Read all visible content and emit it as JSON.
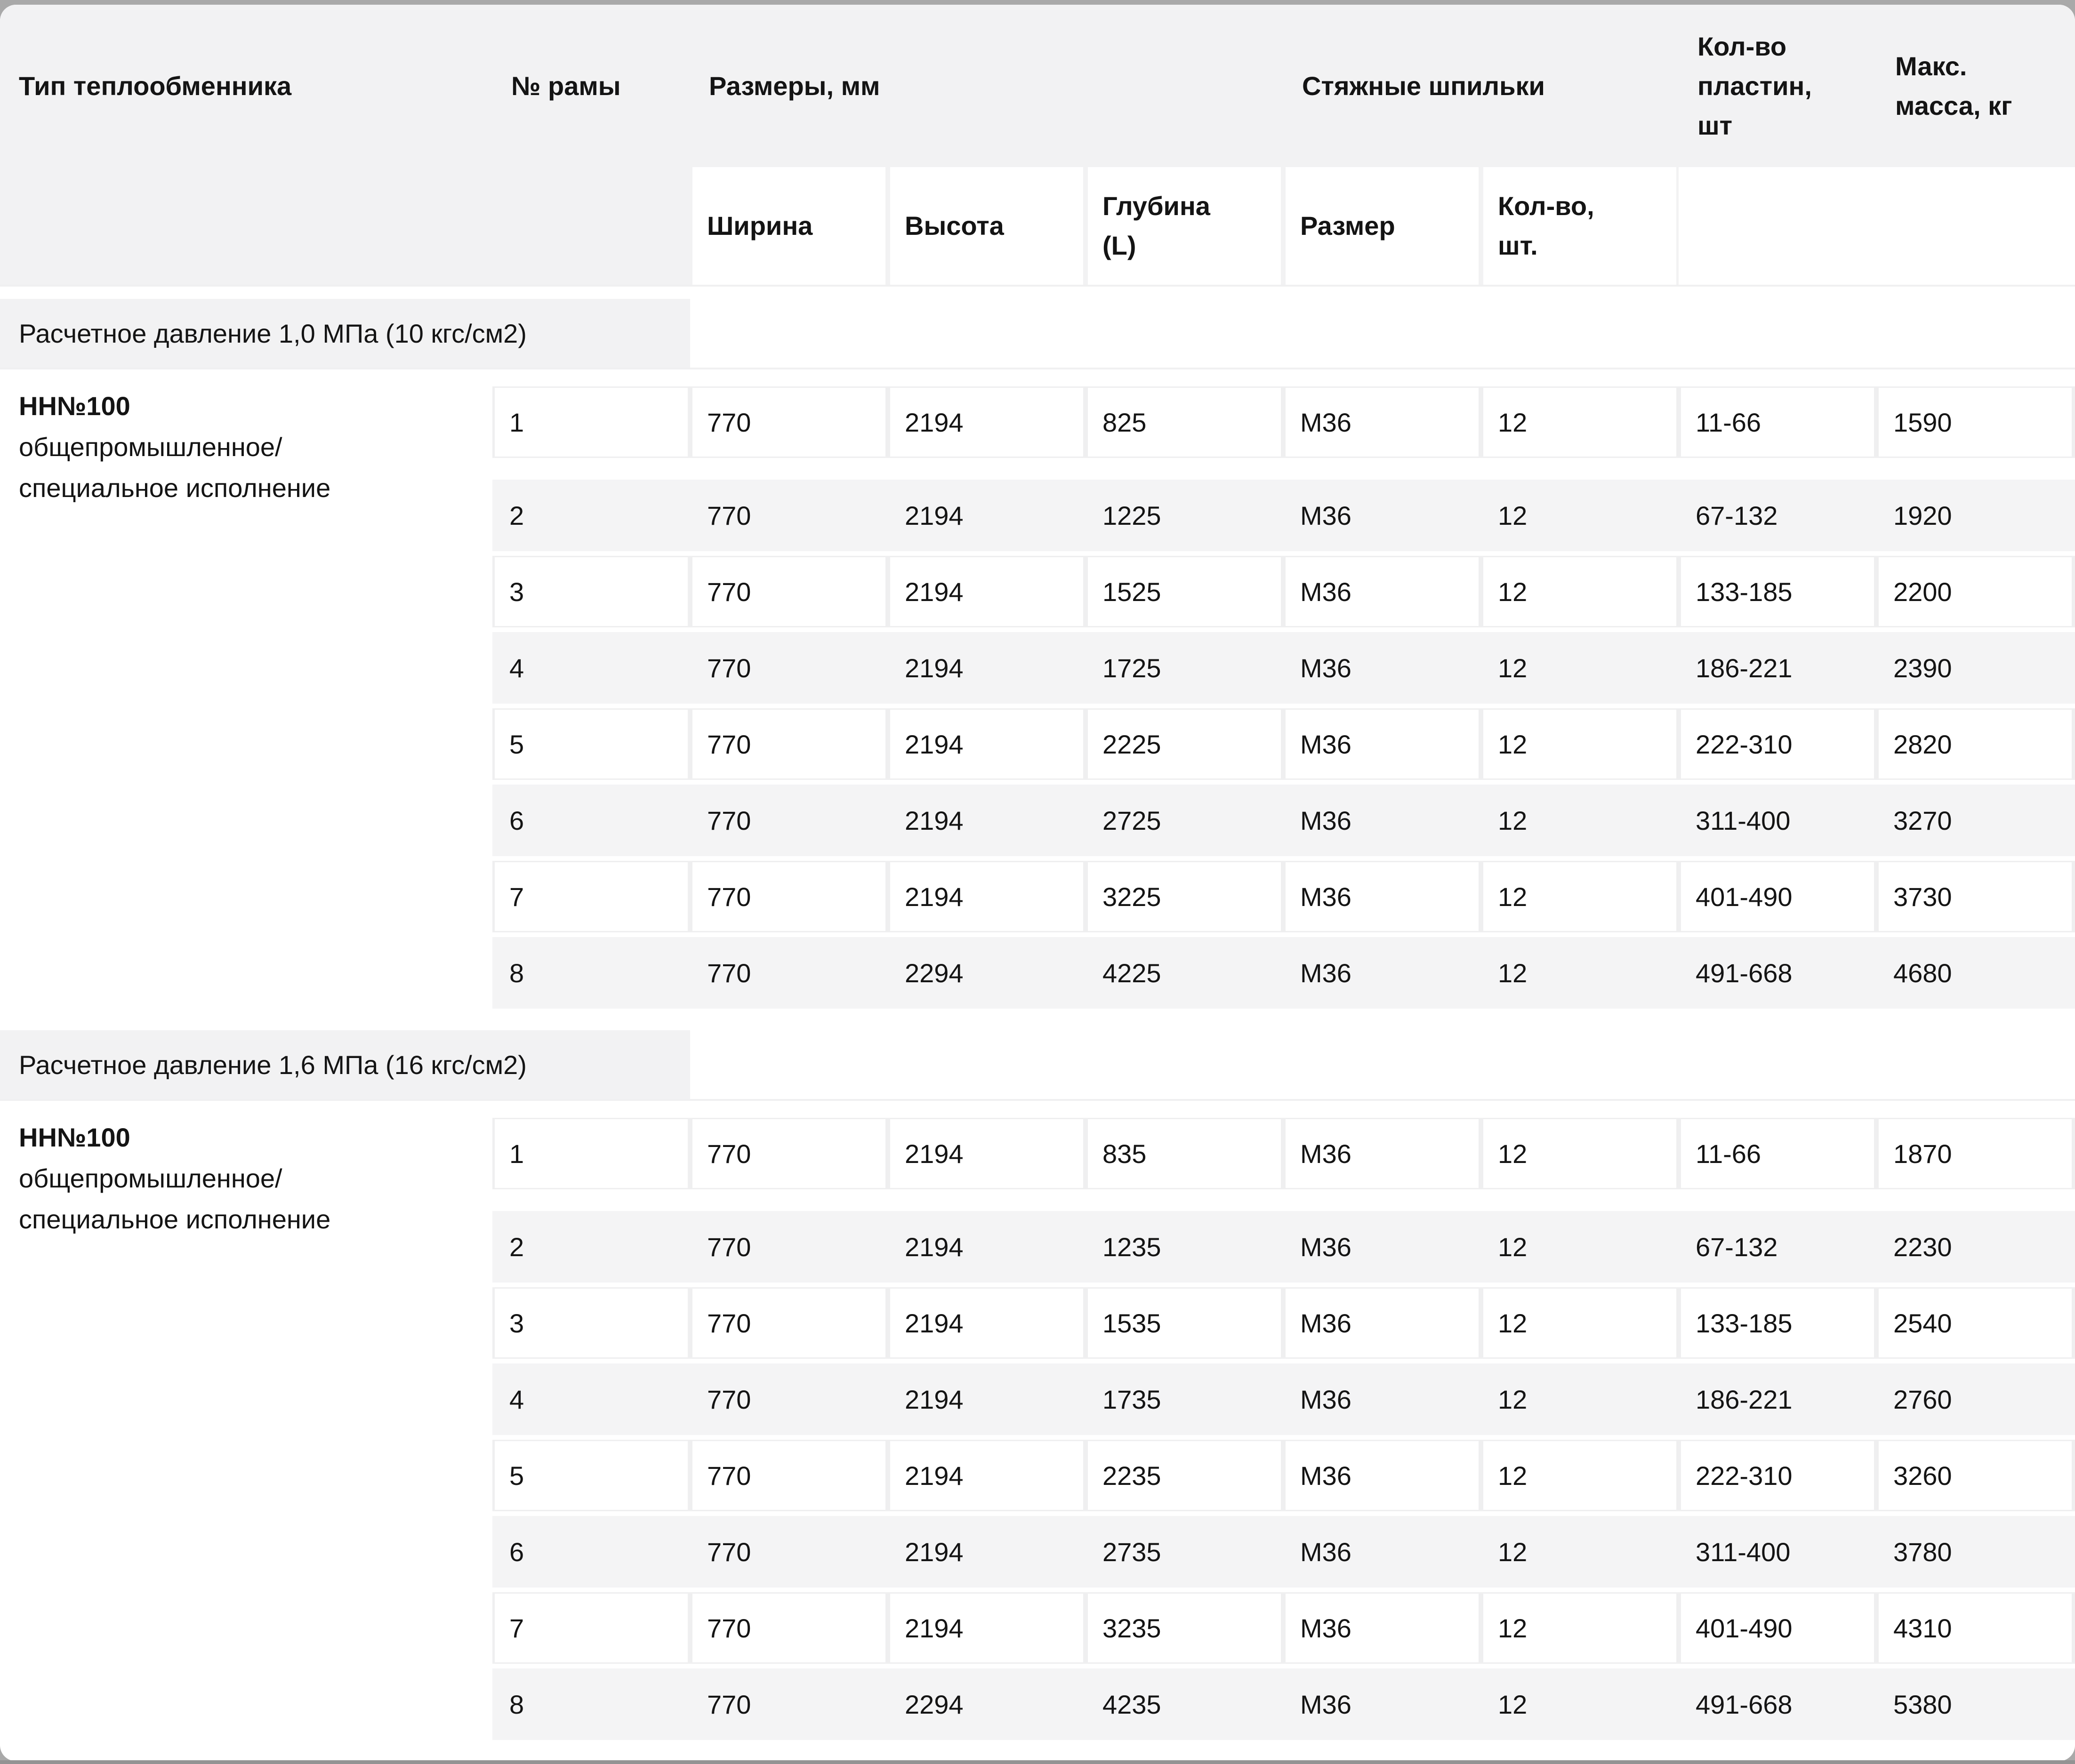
{
  "colors": {
    "page_bg": "#a9a9a9",
    "header_bg": "#f2f2f3",
    "stripe_bg": "#f4f4f5"
  },
  "table": {
    "columns": {
      "type": "Тип теплообменника",
      "frame": "№ рамы",
      "dimensions": "Размеры, мм",
      "dim_width": "Ширина",
      "dim_height": "Высота",
      "dim_depth": "Глубина\n(L)",
      "studs": "Стяжные шпильки",
      "stud_size": "Размер",
      "stud_count": "Кол-во,\nшт.",
      "plates": "Кол-во\nпластин,\nшт",
      "max_mass": "Макс.\nмасса, кг"
    },
    "sections": [
      {
        "title": "Расчетное давление 1,0 МПа (10 кгс/см2)",
        "type_name": "НН№100",
        "type_desc": "общепромышленное/\nспециальное исполнение",
        "rows": [
          [
            "1",
            "770",
            "2194",
            "825",
            "М36",
            "12",
            "11-66",
            "1590"
          ],
          [
            "2",
            "770",
            "2194",
            "1225",
            "М36",
            "12",
            "67-132",
            "1920"
          ],
          [
            "3",
            "770",
            "2194",
            "1525",
            "М36",
            "12",
            "133-185",
            "2200"
          ],
          [
            "4",
            "770",
            "2194",
            "1725",
            "М36",
            "12",
            "186-221",
            "2390"
          ],
          [
            "5",
            "770",
            "2194",
            "2225",
            "М36",
            "12",
            "222-310",
            "2820"
          ],
          [
            "6",
            "770",
            "2194",
            "2725",
            "М36",
            "12",
            "311-400",
            "3270"
          ],
          [
            "7",
            "770",
            "2194",
            "3225",
            "М36",
            "12",
            "401-490",
            "3730"
          ],
          [
            "8",
            "770",
            "2294",
            "4225",
            "М36",
            "12",
            "491-668",
            "4680"
          ]
        ]
      },
      {
        "title": "Расчетное давление 1,6 МПа (16 кгс/см2)",
        "type_name": "НН№100",
        "type_desc": "общепромышленное/\nспециальное исполнение",
        "rows": [
          [
            "1",
            "770",
            "2194",
            "835",
            "М36",
            "12",
            "11-66",
            "1870"
          ],
          [
            "2",
            "770",
            "2194",
            "1235",
            "М36",
            "12",
            "67-132",
            "2230"
          ],
          [
            "3",
            "770",
            "2194",
            "1535",
            "М36",
            "12",
            "133-185",
            "2540"
          ],
          [
            "4",
            "770",
            "2194",
            "1735",
            "М36",
            "12",
            "186-221",
            "2760"
          ],
          [
            "5",
            "770",
            "2194",
            "2235",
            "М36",
            "12",
            "222-310",
            "3260"
          ],
          [
            "6",
            "770",
            "2194",
            "2735",
            "М36",
            "12",
            "311-400",
            "3780"
          ],
          [
            "7",
            "770",
            "2194",
            "3235",
            "М36",
            "12",
            "401-490",
            "4310"
          ],
          [
            "8",
            "770",
            "2294",
            "4235",
            "М36",
            "12",
            "491-668",
            "5380"
          ]
        ]
      }
    ]
  }
}
